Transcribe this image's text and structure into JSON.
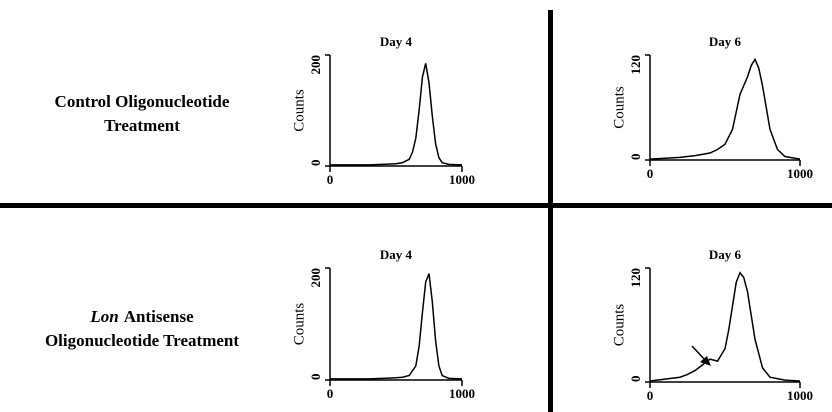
{
  "rows": [
    {
      "lines": [
        [
          "Control Oligonucleotide"
        ],
        [
          "Treatment"
        ]
      ]
    },
    {
      "lines": [
        [
          "Lon",
          "Antisense"
        ],
        [
          "Oligonucleotide Treatment"
        ]
      ]
    }
  ],
  "chart_data": [
    {
      "type": "line",
      "title": "Day 4",
      "ylabel": "Counts",
      "color": "#000000",
      "xlim": [
        0,
        1000
      ],
      "xticks": [
        0,
        1000
      ],
      "ylim": [
        0,
        200
      ],
      "yticks": [
        0,
        200
      ],
      "x": [
        0,
        100,
        200,
        300,
        400,
        500,
        550,
        600,
        625,
        650,
        675,
        700,
        725,
        750,
        775,
        800,
        825,
        850,
        900,
        1000
      ],
      "values": [
        2,
        2,
        2,
        2,
        3,
        4,
        6,
        12,
        25,
        50,
        100,
        160,
        185,
        150,
        90,
        40,
        15,
        6,
        3,
        2
      ]
    },
    {
      "type": "line",
      "title": "Day 6",
      "ylabel": "Counts",
      "color": "#000000",
      "xlim": [
        0,
        1000
      ],
      "xticks": [
        0,
        1000
      ],
      "ylim": [
        0,
        120
      ],
      "yticks": [
        0,
        120
      ],
      "x": [
        0,
        100,
        200,
        300,
        400,
        450,
        500,
        550,
        575,
        600,
        625,
        650,
        675,
        700,
        725,
        750,
        775,
        800,
        850,
        900,
        1000
      ],
      "values": [
        1,
        2,
        3,
        5,
        8,
        12,
        18,
        35,
        55,
        75,
        85,
        95,
        108,
        115,
        105,
        85,
        60,
        35,
        12,
        4,
        1
      ]
    },
    {
      "type": "line",
      "title": "Day 4",
      "ylabel": "Counts",
      "color": "#000000",
      "xlim": [
        0,
        1000
      ],
      "xticks": [
        0,
        1000
      ],
      "ylim": [
        0,
        200
      ],
      "yticks": [
        0,
        200
      ],
      "x": [
        0,
        100,
        200,
        300,
        400,
        500,
        550,
        600,
        650,
        675,
        700,
        725,
        750,
        775,
        800,
        825,
        850,
        900,
        1000
      ],
      "values": [
        2,
        2,
        2,
        2,
        3,
        4,
        5,
        8,
        25,
        60,
        120,
        175,
        190,
        140,
        70,
        25,
        8,
        3,
        2
      ]
    },
    {
      "type": "line",
      "title": "Day 6",
      "ylabel": "Counts",
      "color": "#000000",
      "xlim": [
        0,
        1000
      ],
      "xticks": [
        0,
        1000
      ],
      "ylim": [
        0,
        120
      ],
      "yticks": [
        0,
        120
      ],
      "x": [
        0,
        100,
        200,
        250,
        300,
        350,
        400,
        450,
        500,
        525,
        550,
        575,
        600,
        625,
        650,
        675,
        700,
        750,
        800,
        900,
        1000
      ],
      "values": [
        1,
        3,
        5,
        8,
        12,
        18,
        24,
        22,
        35,
        55,
        80,
        105,
        115,
        110,
        95,
        70,
        45,
        15,
        5,
        2,
        1
      ]
    }
  ]
}
